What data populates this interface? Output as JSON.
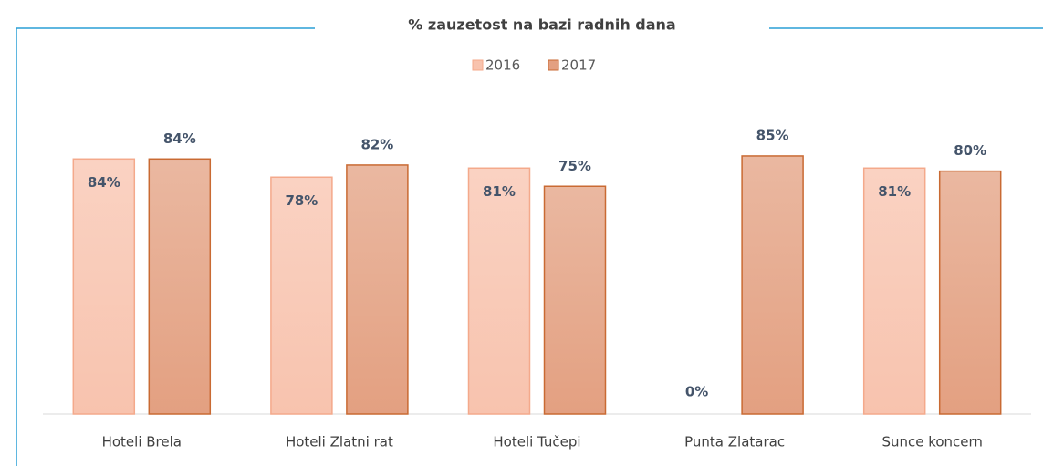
{
  "chart_data": {
    "type": "bar",
    "title": "% zauzetost na bazi radnih dana",
    "categories": [
      "Hoteli Brela",
      "Hoteli Zlatni rat",
      "Hoteli Tučepi",
      "Punta Zlatarac",
      "Sunce koncern"
    ],
    "series": [
      {
        "name": "2016",
        "color": "#f8c3ae",
        "values": [
          84,
          78,
          81,
          0,
          81
        ],
        "value_labels": [
          "84%",
          "78%",
          "81%",
          "0%",
          "81%"
        ]
      },
      {
        "name": "2017",
        "color": "#e3a081",
        "values": [
          84,
          82,
          75,
          85,
          80
        ],
        "value_labels": [
          "84%",
          "82%",
          "75%",
          "85%",
          "80%"
        ]
      }
    ],
    "ylim": [
      0,
      100
    ]
  }
}
